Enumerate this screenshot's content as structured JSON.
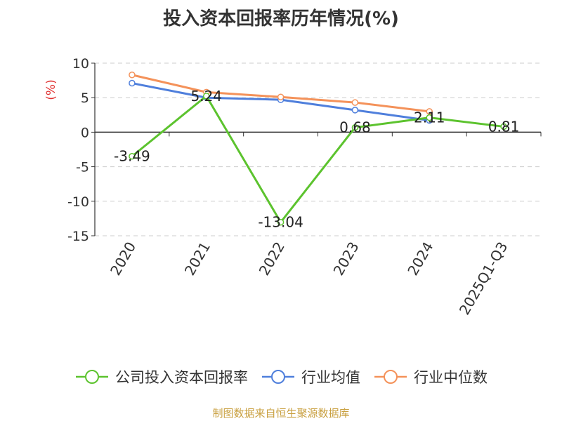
{
  "chart_data": {
    "type": "line",
    "title": "投入资本回报率历年情况(%)",
    "ylabel": "(%)",
    "xlabel": "",
    "categories": [
      "2020",
      "2021",
      "2022",
      "2023",
      "2024",
      "2025Q1-Q3"
    ],
    "ylim": [
      -15,
      10
    ],
    "yticks": [
      10,
      5,
      0,
      -5,
      -10,
      -15
    ],
    "grid": true,
    "legend_position": "bottom",
    "series": [
      {
        "name": "公司投入资本回报率",
        "color": "#5cc32e",
        "values": [
          -3.49,
          5.24,
          -13.04,
          0.68,
          2.11,
          0.81
        ],
        "labels": [
          "-3.49",
          "5.24",
          "-13.04",
          "0.68",
          "2.11",
          "0.81"
        ]
      },
      {
        "name": "行业均值",
        "color": "#4f7fdc",
        "values": [
          7.1,
          5.0,
          4.7,
          3.2,
          1.7,
          null
        ]
      },
      {
        "name": "行业中位数",
        "color": "#f4925a",
        "values": [
          8.3,
          5.8,
          5.1,
          4.3,
          3.0,
          null
        ]
      }
    ],
    "source": "制图数据来自恒生聚源数据库"
  }
}
